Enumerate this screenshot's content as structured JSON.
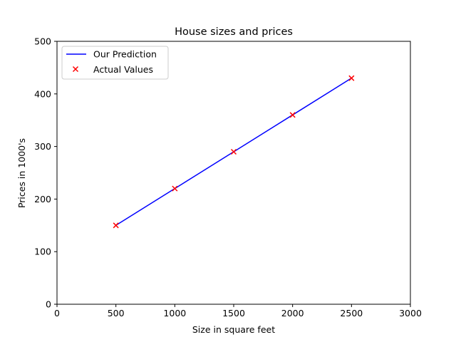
{
  "chart_data": {
    "type": "line",
    "title": "House sizes and prices",
    "xlabel": "Size in square feet",
    "ylabel": "Prices in 1000's",
    "xlim": [
      0,
      3000
    ],
    "ylim": [
      0,
      500
    ],
    "x_ticks": [
      0,
      500,
      1000,
      1500,
      2000,
      2500,
      3000
    ],
    "y_ticks": [
      0,
      100,
      200,
      300,
      400,
      500
    ],
    "grid": false,
    "legend_position": "top-left",
    "series": [
      {
        "name": "Our Prediction",
        "kind": "line",
        "color": "#0000ff",
        "x": [
          500,
          1000,
          1500,
          2000,
          2500
        ],
        "y": [
          150,
          220,
          290,
          360,
          430
        ]
      },
      {
        "name": "Actual Values",
        "kind": "scatter",
        "marker": "x",
        "color": "#ff0000",
        "x": [
          500,
          1000,
          1500,
          2000,
          2500
        ],
        "y": [
          150,
          220,
          290,
          360,
          430
        ]
      }
    ]
  }
}
